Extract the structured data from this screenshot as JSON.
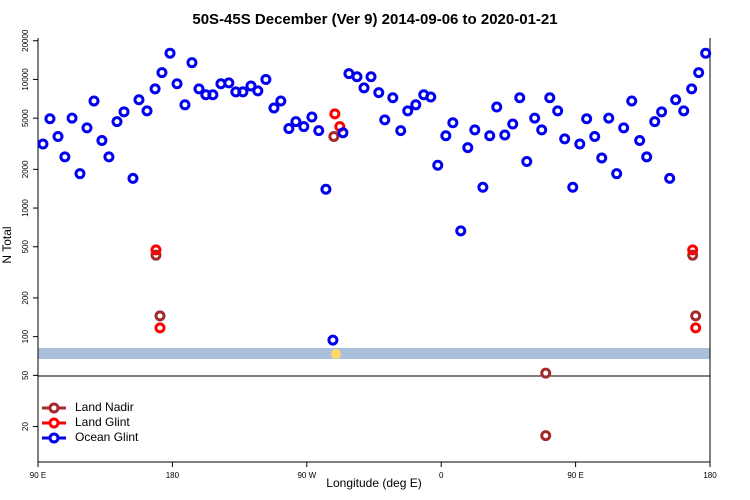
{
  "chart_data": {
    "type": "scatter",
    "title": "50S-45S December (Ver 9)   2014-09-06 to 2020-01-21",
    "x_label": "Longitude (deg E)",
    "y_label": "N Total",
    "log_y": true,
    "legend": "lower left",
    "xlim": [
      90,
      540
    ],
    "xticks": [
      {
        "value": 90,
        "label": "90 E"
      },
      180,
      {
        "value": 270,
        "label": "90 W"
      },
      {
        "value": 360,
        "label": "0"
      },
      {
        "value": 450,
        "label": "90 E"
      },
      {
        "value": 540,
        "label": "180"
      }
    ],
    "ylim": [
      10.6,
      21000
    ],
    "yticks": [
      20,
      50,
      100,
      200,
      500,
      1000,
      2000,
      5000,
      10000,
      20000
    ],
    "series": [
      {
        "name": "Land Nadir",
        "color": "#a52a2a",
        "x": [
          169,
          171.7,
          288.1,
          430,
          430,
          528.4,
          530.4
        ],
        "values": [
          430,
          145,
          3600,
          52,
          17,
          430,
          145
        ]
      },
      {
        "name": "Land Glint",
        "color": "#ff0000",
        "x": [
          169,
          171.7,
          288.8,
          292.1,
          528.4,
          530.4
        ],
        "values": [
          473,
          117,
          5400,
          4300,
          473,
          117
        ]
      },
      {
        "name": "Ocean Glint",
        "color": "#0000ee",
        "x": [
          93.3,
          98,
          103.4,
          108,
          112.8,
          118.1,
          122.8,
          127.5,
          132.8,
          137.5,
          142.9,
          147.6,
          153.6,
          157.6,
          163,
          168.4,
          173,
          178.4,
          183.1,
          188.4,
          193.1,
          197.8,
          202.4,
          207.1,
          212.5,
          217.8,
          222.5,
          227.2,
          232.6,
          237.2,
          242.6,
          248,
          252.6,
          258,
          262.7,
          268,
          273.4,
          278,
          282.8,
          287.5,
          294.2,
          298.2,
          303.6,
          308.3,
          313,
          318.2,
          322.2,
          327.6,
          332.9,
          337.6,
          343,
          348.3,
          353,
          357.7,
          363.1,
          367.8,
          373.1,
          377.8,
          382.5,
          387.9,
          392.5,
          397.2,
          402.6,
          407.9,
          412.6,
          417.3,
          422.6,
          427.3,
          432.7,
          438,
          442.7,
          448.1,
          452.8,
          457.4,
          462.8,
          467.5,
          472.2,
          477.5,
          482.2,
          487.6,
          492.9,
          497.6,
          503,
          507.6,
          513,
          517,
          522.4,
          527.7,
          532.4,
          537.1
        ],
        "values": [
          3150,
          4950,
          3600,
          2500,
          5000,
          1850,
          4200,
          6800,
          3350,
          2500,
          4700,
          5600,
          1700,
          6950,
          5700,
          8450,
          11300,
          16000,
          9250,
          6350,
          13500,
          8450,
          7600,
          7600,
          9250,
          9400,
          8000,
          8000,
          8900,
          8150,
          10000,
          6000,
          6800,
          4150,
          4700,
          4300,
          5100,
          4000,
          1400,
          94,
          3850,
          11100,
          10500,
          8600,
          10500,
          7900,
          4850,
          7200,
          4000,
          5700,
          6350,
          7600,
          7300,
          2150,
          3650,
          4600,
          665,
          2950,
          4050,
          1450,
          3650,
          6100,
          3700,
          4500,
          7200,
          2300,
          5000,
          4050,
          7200,
          5700,
          3450,
          1450,
          3150,
          4950,
          3600,
          2450,
          5000,
          1850,
          4200,
          6800,
          3350,
          2500,
          4700,
          5600,
          1700,
          6950,
          5700,
          8450,
          11300,
          16000
        ]
      }
    ]
  }
}
